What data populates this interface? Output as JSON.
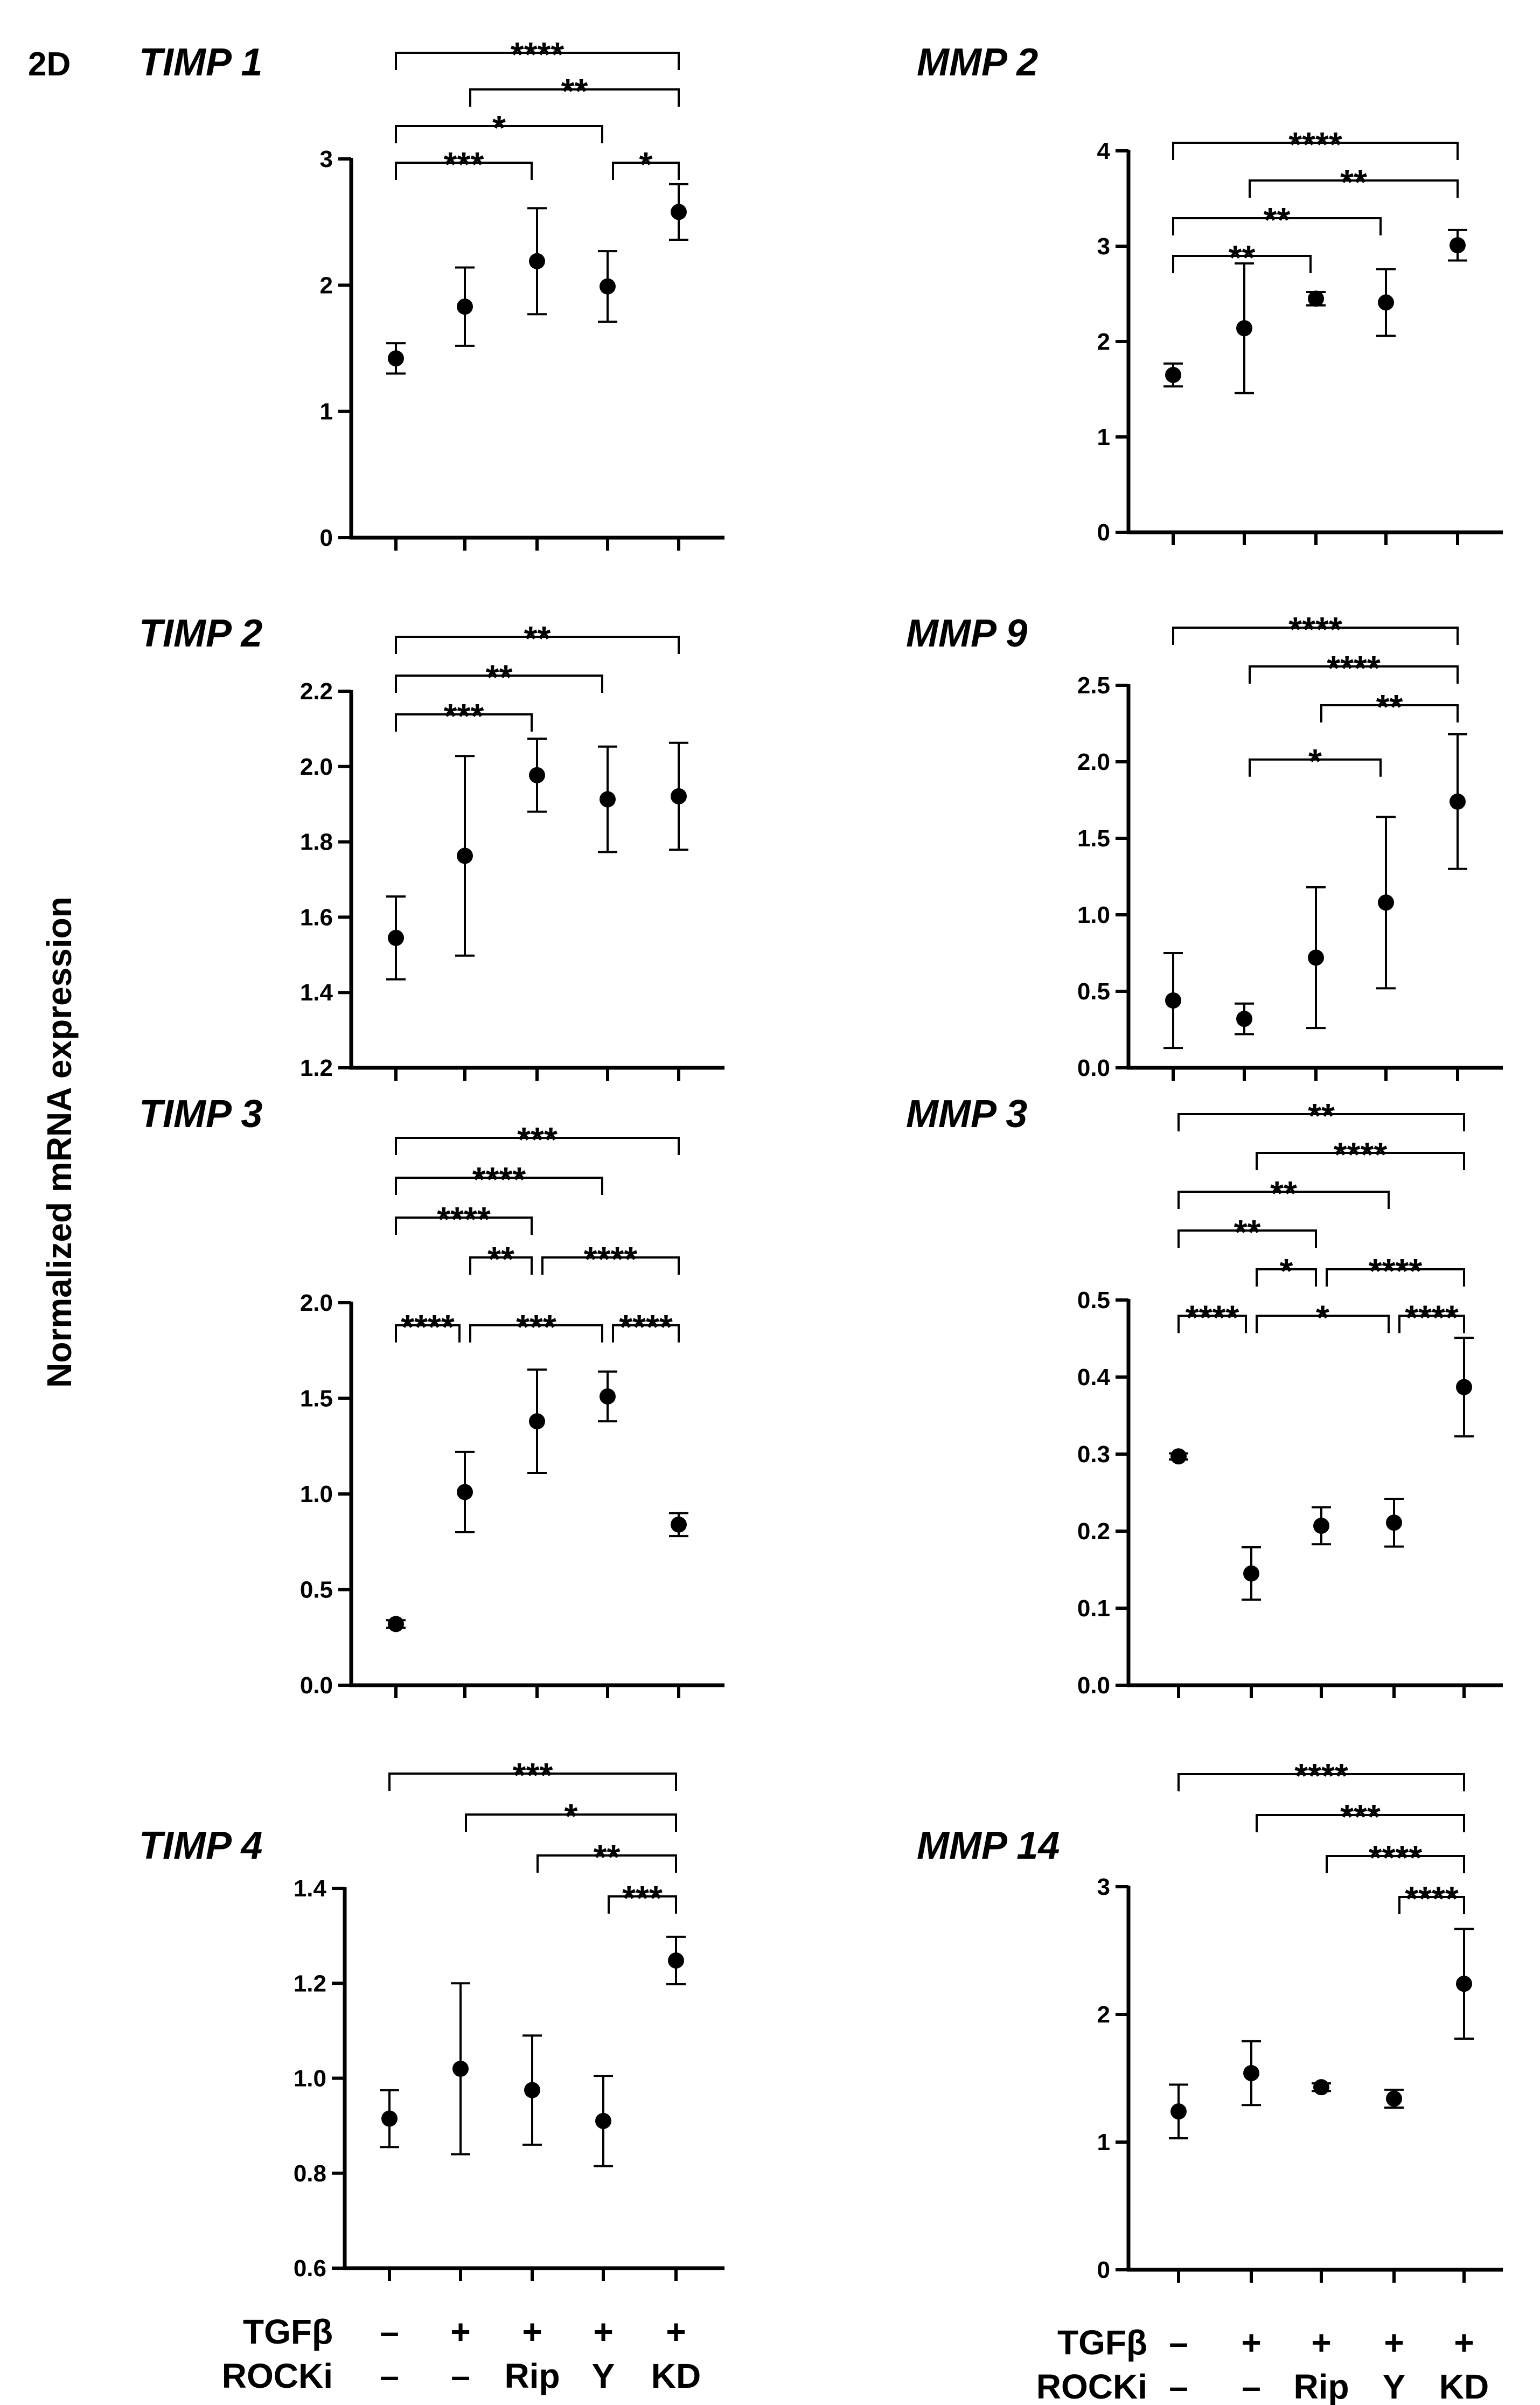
{
  "figure": {
    "label": "2D",
    "ylabel": "Normalized mRNA expression",
    "condition_rows": [
      {
        "name": "TGFβ",
        "values": [
          "–",
          "+",
          "+",
          "+",
          "+"
        ]
      },
      {
        "name": "ROCKi",
        "values": [
          "–",
          "–",
          "Rip",
          "Y",
          "KD"
        ]
      }
    ]
  },
  "chart_data": [
    {
      "id": "timp1",
      "type": "scatter",
      "title": "TIMP 1",
      "ylim": [
        0,
        3
      ],
      "yticks": [
        "0",
        "1",
        "2",
        "3"
      ],
      "means": [
        1.42,
        1.83,
        2.19,
        1.99,
        2.58
      ],
      "errors": [
        0.12,
        0.31,
        0.42,
        0.28,
        0.22
      ],
      "comparisons": [
        {
          "from": 0,
          "to": 4,
          "label": "****"
        },
        {
          "from": 1,
          "to": 4,
          "label": "**"
        },
        {
          "from": 0,
          "to": 3,
          "label": "*"
        },
        {
          "from": 0,
          "to": 2,
          "label": "***"
        },
        {
          "from": 3,
          "to": 4,
          "label": "*"
        }
      ]
    },
    {
      "id": "mmp2",
      "type": "scatter",
      "title": "MMP 2",
      "ylim": [
        0,
        4
      ],
      "yticks": [
        "0",
        "1",
        "2",
        "3",
        "4"
      ],
      "means": [
        1.65,
        2.14,
        2.45,
        2.41,
        3.01
      ],
      "errors": [
        0.12,
        0.68,
        0.07,
        0.35,
        0.16
      ],
      "comparisons": [
        {
          "from": 0,
          "to": 4,
          "label": "****"
        },
        {
          "from": 1,
          "to": 4,
          "label": "**"
        },
        {
          "from": 0,
          "to": 3,
          "label": "**"
        },
        {
          "from": 0,
          "to": 2,
          "label": "**"
        }
      ]
    },
    {
      "id": "timp2",
      "type": "scatter",
      "title": "TIMP 2",
      "ylim": [
        1.2,
        2.2
      ],
      "yticks": [
        "1.2",
        "1.4",
        "1.6",
        "1.8",
        "2.0",
        "2.2"
      ],
      "means": [
        1.545,
        1.763,
        1.977,
        1.913,
        1.921
      ],
      "errors": [
        0.11,
        0.265,
        0.097,
        0.14,
        0.142
      ],
      "comparisons": [
        {
          "from": 0,
          "to": 4,
          "label": "**"
        },
        {
          "from": 0,
          "to": 3,
          "label": "**"
        },
        {
          "from": 0,
          "to": 2,
          "label": "***"
        }
      ]
    },
    {
      "id": "mmp9",
      "type": "scatter",
      "title": "MMP 9",
      "ylim": [
        0,
        2.5
      ],
      "yticks": [
        "0.0",
        "0.5",
        "1.0",
        "1.5",
        "2.0",
        "2.5"
      ],
      "means": [
        0.44,
        0.32,
        0.72,
        1.08,
        1.74
      ],
      "errors": [
        0.31,
        0.1,
        0.46,
        0.56,
        0.44
      ],
      "comparisons": [
        {
          "from": 0,
          "to": 4,
          "label": "****"
        },
        {
          "from": 1,
          "to": 4,
          "label": "****"
        },
        {
          "from": 2,
          "to": 4,
          "label": "**"
        },
        {
          "from": 1,
          "to": 3,
          "label": "*"
        }
      ]
    },
    {
      "id": "timp3",
      "type": "scatter",
      "title": "TIMP 3",
      "ylim": [
        0,
        2
      ],
      "yticks": [
        "0.0",
        "0.5",
        "1.0",
        "1.5",
        "2.0"
      ],
      "means": [
        0.32,
        1.01,
        1.38,
        1.51,
        0.84
      ],
      "errors": [
        0.02,
        0.21,
        0.27,
        0.13,
        0.06
      ],
      "comparisons": [
        {
          "from": 0,
          "to": 4,
          "label": "***"
        },
        {
          "from": 0,
          "to": 3,
          "label": "****"
        },
        {
          "from": 0,
          "to": 2,
          "label": "****"
        },
        {
          "from": 1,
          "to": 2,
          "label": "**"
        },
        {
          "from": 2,
          "to": 4,
          "label": "****"
        },
        {
          "from": 0,
          "to": 1,
          "label": "****"
        },
        {
          "from": 1,
          "to": 3,
          "label": "***"
        },
        {
          "from": 3,
          "to": 4,
          "label": "****"
        }
      ]
    },
    {
      "id": "mmp3",
      "type": "scatter",
      "title": "MMP 3",
      "ylim": [
        0,
        0.5
      ],
      "yticks": [
        "0.0",
        "0.1",
        "0.2",
        "0.3",
        "0.4",
        "0.5"
      ],
      "means": [
        0.297,
        0.145,
        0.207,
        0.211,
        0.387
      ],
      "errors": [
        0.004,
        0.034,
        0.024,
        0.031,
        0.064
      ],
      "comparisons": [
        {
          "from": 0,
          "to": 4,
          "label": "**"
        },
        {
          "from": 1,
          "to": 4,
          "label": "****"
        },
        {
          "from": 0,
          "to": 3,
          "label": "**"
        },
        {
          "from": 0,
          "to": 2,
          "label": "**"
        },
        {
          "from": 1,
          "to": 2,
          "label": "*"
        },
        {
          "from": 2,
          "to": 4,
          "label": "****"
        },
        {
          "from": 0,
          "to": 1,
          "label": "****"
        },
        {
          "from": 1,
          "to": 3,
          "label": "*"
        },
        {
          "from": 3,
          "to": 4,
          "label": "****"
        }
      ]
    },
    {
      "id": "timp4",
      "type": "scatter",
      "title": "TIMP 4",
      "ylim": [
        0.6,
        1.4
      ],
      "yticks": [
        "0.6",
        "0.8",
        "1.0",
        "1.2",
        "1.4"
      ],
      "means": [
        0.915,
        1.02,
        0.975,
        0.91,
        1.248
      ],
      "errors": [
        0.06,
        0.18,
        0.115,
        0.095,
        0.05
      ],
      "comparisons": [
        {
          "from": 0,
          "to": 4,
          "label": "***"
        },
        {
          "from": 1,
          "to": 4,
          "label": "*"
        },
        {
          "from": 2,
          "to": 4,
          "label": "**"
        },
        {
          "from": 3,
          "to": 4,
          "label": "***"
        }
      ]
    },
    {
      "id": "mmp14",
      "type": "scatter",
      "title": "MMP 14",
      "ylim": [
        0,
        3
      ],
      "yticks": [
        "0",
        "1",
        "2",
        "3"
      ],
      "means": [
        1.24,
        1.54,
        1.43,
        1.34,
        2.24
      ],
      "errors": [
        0.21,
        0.25,
        0.03,
        0.07,
        0.43
      ],
      "comparisons": [
        {
          "from": 0,
          "to": 4,
          "label": "****"
        },
        {
          "from": 1,
          "to": 4,
          "label": "***"
        },
        {
          "from": 2,
          "to": 4,
          "label": "****"
        },
        {
          "from": 3,
          "to": 4,
          "label": "****"
        }
      ]
    }
  ]
}
